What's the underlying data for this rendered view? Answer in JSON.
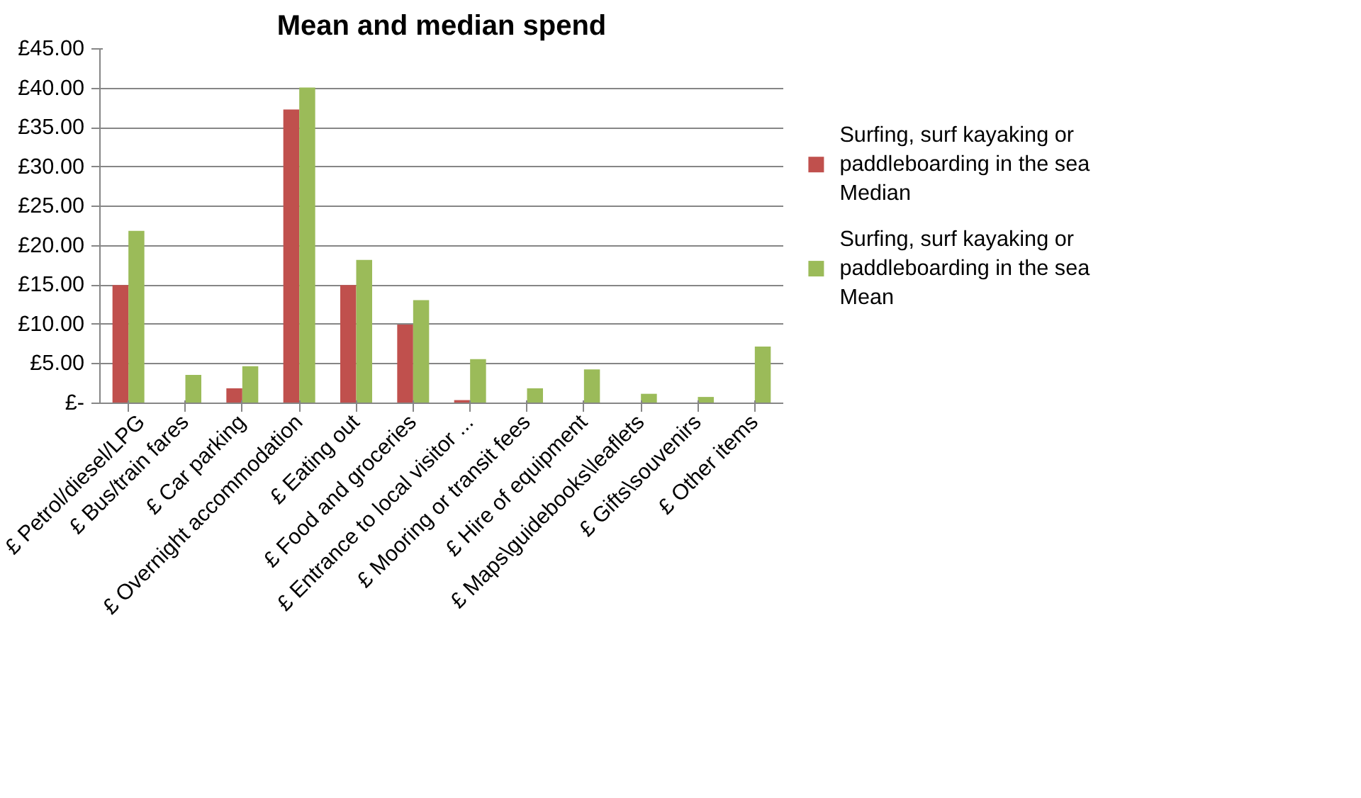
{
  "chart_data": {
    "type": "bar",
    "title": "Mean and median spend",
    "categories": [
      "£ Petrol/diesel/LPG",
      "£ Bus/train fares",
      "£ Car parking",
      "£ Overnight accommodation",
      "£ Eating out",
      "£ Food and groceries",
      "£ Entrance to local visitor ...",
      "£ Mooring or transit fees",
      "£ Hire of equipment",
      "£ Maps\\guidebooks\\leaflets",
      "£ Gifts\\souvenirs",
      "£ Other items"
    ],
    "series": [
      {
        "name": "Surfing, surf kayaking or paddleboarding in the sea Median",
        "color": "#c0504d",
        "values": [
          15,
          0,
          1.9,
          37.3,
          15,
          10,
          0.4,
          0,
          0,
          0,
          0,
          0
        ]
      },
      {
        "name": "Surfing, surf kayaking or paddleboarding in the sea Mean",
        "color": "#9bbb59",
        "values": [
          21.9,
          3.6,
          4.7,
          40.1,
          18.2,
          13.1,
          5.6,
          1.9,
          4.3,
          1.2,
          0.8,
          7.2
        ]
      }
    ],
    "ylim": [
      0,
      45
    ],
    "yticks": [
      {
        "value": 0,
        "label": "£-"
      },
      {
        "value": 5,
        "label": "£5.00"
      },
      {
        "value": 10,
        "label": "£10.00"
      },
      {
        "value": 15,
        "label": "£15.00"
      },
      {
        "value": 20,
        "label": "£20.00"
      },
      {
        "value": 25,
        "label": "£25.00"
      },
      {
        "value": 30,
        "label": "£30.00"
      },
      {
        "value": 35,
        "label": "£35.00"
      },
      {
        "value": 40,
        "label": "£40.00"
      },
      {
        "value": 45,
        "label": "£45.00"
      }
    ],
    "grid": "y",
    "legend": "right"
  }
}
